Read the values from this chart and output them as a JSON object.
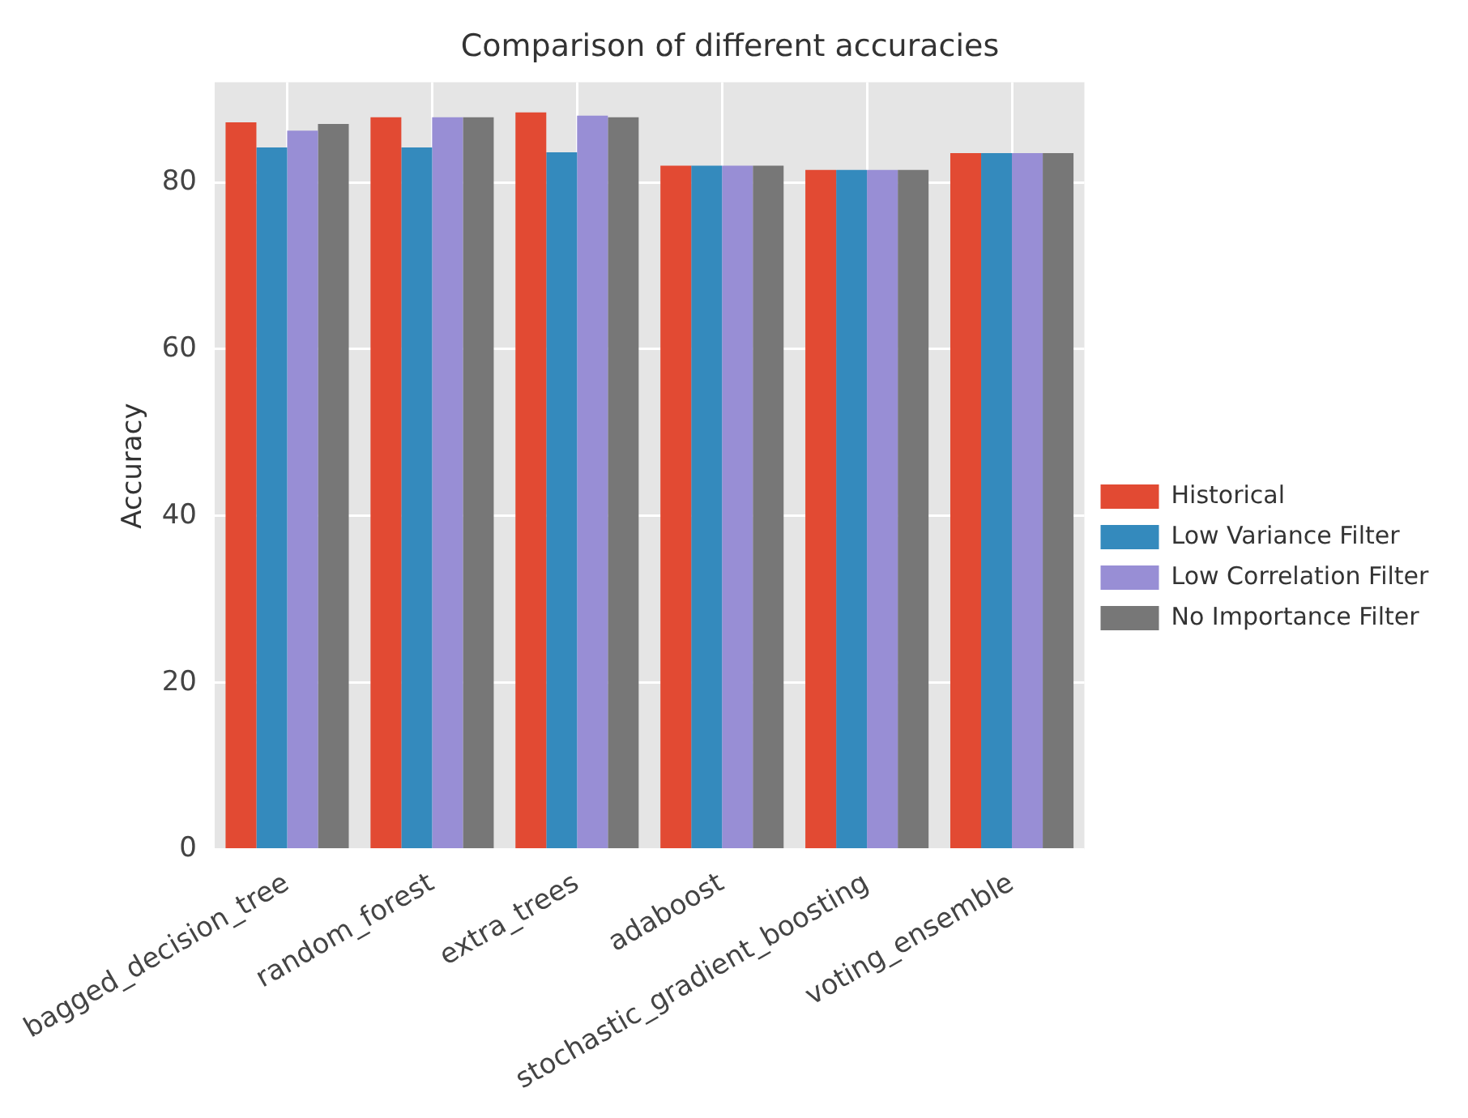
{
  "chart_data": {
    "type": "bar",
    "title": "Comparison of different accuracies",
    "ylabel": "Accuracy",
    "categories": [
      "bagged_decision_tree",
      "random_forest",
      "extra_trees",
      "adaboost",
      "stochastic_gradient_boosting",
      "voting_ensemble"
    ],
    "series": [
      {
        "name": "Historical",
        "color": "#e24a33",
        "values": [
          87.2,
          87.8,
          88.4,
          82,
          81.5,
          83.5
        ]
      },
      {
        "name": "Low Variance Filter",
        "color": "#348abd",
        "values": [
          84.2,
          84.2,
          83.6,
          82,
          81.5,
          83.5
        ]
      },
      {
        "name": "Low Correlation Filter",
        "color": "#988ed5",
        "values": [
          86.2,
          87.8,
          88,
          82,
          81.5,
          83.5
        ]
      },
      {
        "name": "No Importance Filter",
        "color": "#777777",
        "values": [
          87,
          87.8,
          87.8,
          82,
          81.5,
          83.5
        ]
      }
    ],
    "ylim": [
      0,
      92
    ],
    "yticks": [
      0,
      20,
      40,
      60,
      80
    ],
    "grid": true,
    "legend": "right"
  }
}
